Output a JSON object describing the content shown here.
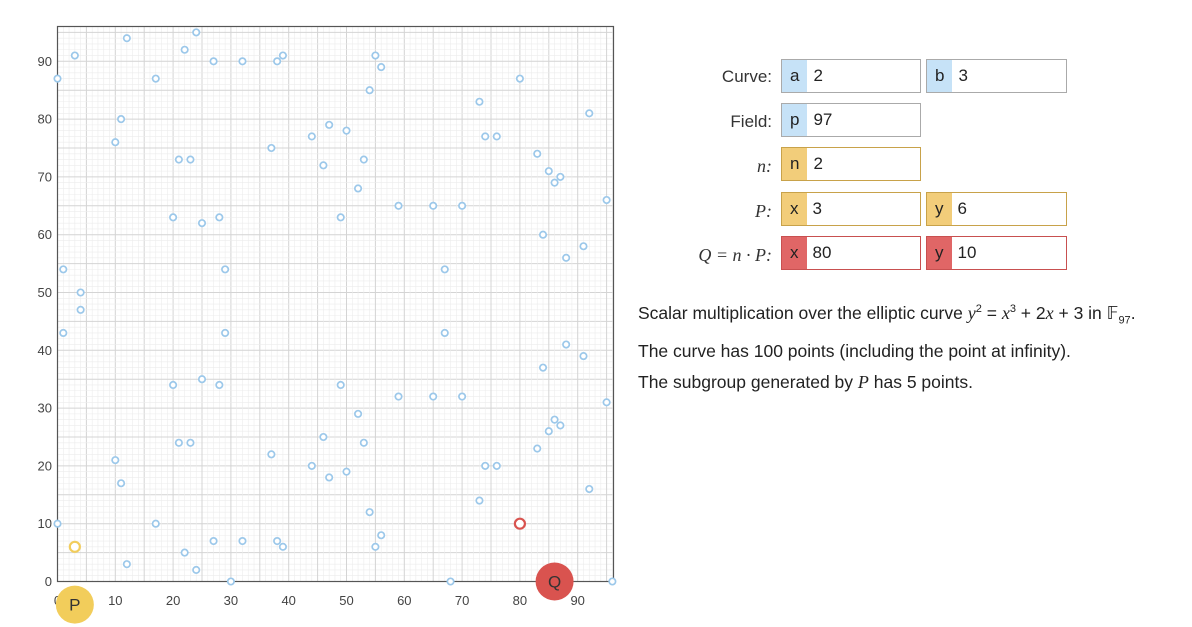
{
  "plot": {
    "x_ticks": [
      "0",
      "10",
      "20",
      "30",
      "40",
      "50",
      "60",
      "70",
      "80",
      "90"
    ],
    "y_ticks": [
      "0",
      "10",
      "20",
      "30",
      "40",
      "50",
      "60",
      "70",
      "80",
      "90"
    ],
    "p_label": "P",
    "q_label": "Q",
    "colors": {
      "curve_point": "#9cc8ea",
      "p_color": "#f2cd5b",
      "q_color": "#d9534f",
      "grid": "#dddddd"
    },
    "curve_points": [
      [
        0,
        10
      ],
      [
        0,
        87
      ],
      [
        1,
        43
      ],
      [
        1,
        54
      ],
      [
        3,
        6
      ],
      [
        3,
        91
      ],
      [
        4,
        47
      ],
      [
        4,
        50
      ],
      [
        10,
        21
      ],
      [
        10,
        76
      ],
      [
        11,
        17
      ],
      [
        11,
        80
      ],
      [
        12,
        3
      ],
      [
        12,
        94
      ],
      [
        17,
        10
      ],
      [
        17,
        87
      ],
      [
        20,
        34
      ],
      [
        20,
        63
      ],
      [
        21,
        24
      ],
      [
        21,
        73
      ],
      [
        22,
        5
      ],
      [
        22,
        92
      ],
      [
        23,
        24
      ],
      [
        23,
        73
      ],
      [
        24,
        2
      ],
      [
        24,
        95
      ],
      [
        25,
        35
      ],
      [
        25,
        62
      ],
      [
        27,
        7
      ],
      [
        27,
        90
      ],
      [
        28,
        34
      ],
      [
        28,
        63
      ],
      [
        29,
        43
      ],
      [
        29,
        54
      ],
      [
        32,
        7
      ],
      [
        32,
        90
      ],
      [
        37,
        22
      ],
      [
        37,
        75
      ],
      [
        38,
        7
      ],
      [
        38,
        90
      ],
      [
        39,
        6
      ],
      [
        39,
        91
      ],
      [
        44,
        20
      ],
      [
        44,
        77
      ],
      [
        46,
        25
      ],
      [
        46,
        72
      ],
      [
        47,
        18
      ],
      [
        47,
        79
      ],
      [
        49,
        34
      ],
      [
        49,
        63
      ],
      [
        50,
        19
      ],
      [
        50,
        78
      ],
      [
        52,
        29
      ],
      [
        52,
        68
      ],
      [
        53,
        24
      ],
      [
        53,
        73
      ],
      [
        54,
        12
      ],
      [
        54,
        85
      ],
      [
        55,
        6
      ],
      [
        55,
        91
      ],
      [
        56,
        8
      ],
      [
        56,
        89
      ],
      [
        59,
        32
      ],
      [
        59,
        65
      ],
      [
        65,
        32
      ],
      [
        65,
        65
      ],
      [
        67,
        43
      ],
      [
        67,
        54
      ],
      [
        70,
        32
      ],
      [
        70,
        65
      ],
      [
        73,
        14
      ],
      [
        73,
        83
      ],
      [
        74,
        20
      ],
      [
        74,
        77
      ],
      [
        76,
        20
      ],
      [
        76,
        77
      ],
      [
        80,
        10
      ],
      [
        80,
        87
      ],
      [
        83,
        23
      ],
      [
        83,
        74
      ],
      [
        84,
        37
      ],
      [
        84,
        60
      ],
      [
        85,
        26
      ],
      [
        85,
        71
      ],
      [
        86,
        28
      ],
      [
        86,
        69
      ],
      [
        87,
        27
      ],
      [
        87,
        70
      ],
      [
        88,
        41
      ],
      [
        88,
        56
      ],
      [
        91,
        39
      ],
      [
        91,
        58
      ],
      [
        92,
        16
      ],
      [
        92,
        81
      ],
      [
        95,
        31
      ],
      [
        95,
        66
      ],
      [
        30,
        0
      ],
      [
        68,
        0
      ],
      [
        96,
        0
      ]
    ],
    "p_point": [
      3,
      6
    ],
    "q_point": [
      80,
      10
    ],
    "p_marker": [
      3,
      -4
    ],
    "q_marker": [
      86,
      0
    ]
  },
  "inputs": {
    "curve_label": "Curve:",
    "field_label": "Field:",
    "n_label": "n:",
    "p_label": "P:",
    "q_label_left": "Q = n · P:",
    "a_prefix": "a",
    "a_value": "2",
    "b_prefix": "b",
    "b_value": "3",
    "p_prefix": "p",
    "p_value": "97",
    "n_prefix": "n",
    "n_value": "2",
    "px_prefix": "x",
    "px_value": "3",
    "py_prefix": "y",
    "py_value": "6",
    "qx_prefix": "x",
    "qx_value": "80",
    "qy_prefix": "y",
    "qy_value": "10"
  },
  "description": {
    "line1_a": "Scalar multiplication over the elliptic curve ",
    "line1_y": "y",
    "line1_exp2": "2",
    "line1_eq": " = ",
    "line1_x": "x",
    "line1_exp3": "3",
    "line1_b": " + 2",
    "line1_x2": "x",
    "line1_c": " + 3 in 𝔽",
    "line1_sub": "97",
    "line1_end": ".",
    "line2": "The curve has 100 points (including the point at infinity).",
    "line3_a": "The subgroup generated by ",
    "line3_p": "P",
    "line3_b": " has 5 points."
  }
}
